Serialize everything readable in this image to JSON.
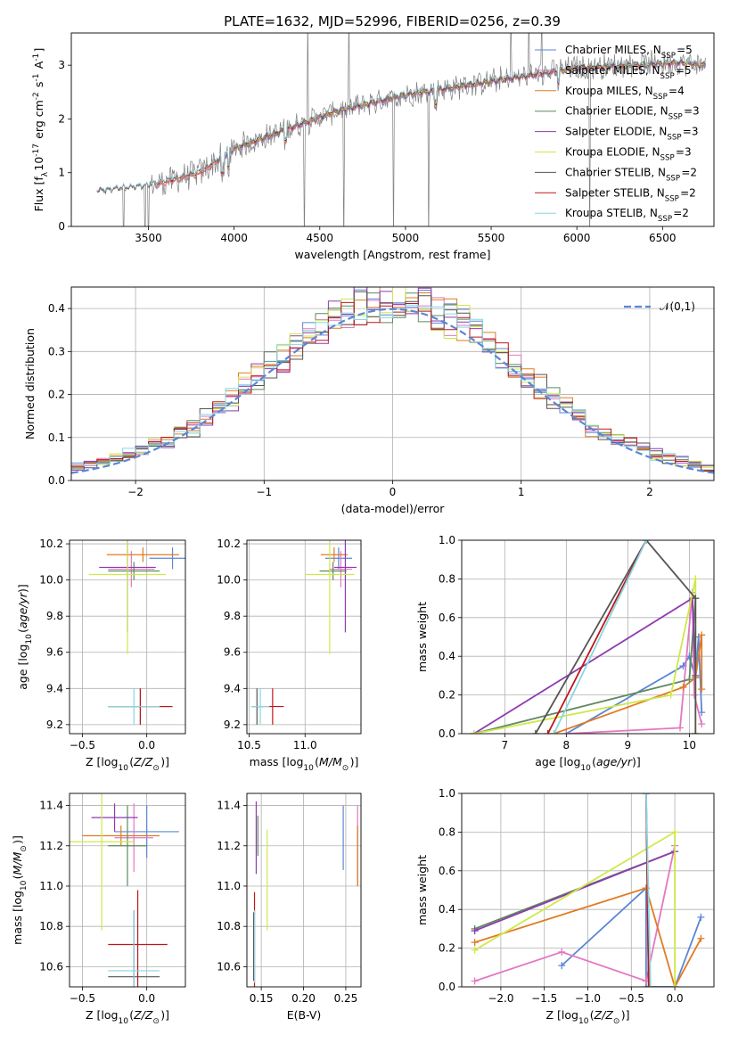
{
  "title": "PLATE=1632, MJD=52996, FIBERID=0256, z=0.39",
  "colors": {
    "Chabrier MILES": "#5b86d6",
    "Salpeter MILES": "#e377c2",
    "Kroupa MILES": "#e07b22",
    "Chabrier ELODIE": "#5e8a5e",
    "Salpeter ELODIE": "#8e3bb0",
    "Kroupa ELODIE": "#cfe84a",
    "Chabrier STELIB": "#555555",
    "Salpeter STELIB": "#c0161b",
    "Kroupa STELIB": "#87d6e3",
    "data": "#808080",
    "normal": "#5b86d6"
  },
  "chart_data": [
    {
      "type": "line",
      "id": "spectrum",
      "xlabel": "wavelength [Angstrom, rest frame]",
      "ylabel": "Flux [f$_\\lambda$10$^{-17}$ erg cm$^{-2}$ s$^{-1}$ A$^{-1}$]",
      "xlim": [
        3050,
        6800
      ],
      "ylim": [
        0,
        3.6
      ],
      "xticks": [
        3500,
        4000,
        4500,
        5000,
        5500,
        6000,
        6500
      ],
      "yticks": [
        0,
        1,
        2,
        3
      ],
      "grid": false,
      "legend_position": "top-right",
      "legend": [
        {
          "name": "Chabrier MILES",
          "nssp": "5"
        },
        {
          "name": "Salpeter MILES",
          "nssp": "5"
        },
        {
          "name": "Kroupa MILES",
          "nssp": "4"
        },
        {
          "name": "Chabrier ELODIE",
          "nssp": "3"
        },
        {
          "name": "Salpeter ELODIE",
          "nssp": "3"
        },
        {
          "name": "Kroupa ELODIE",
          "nssp": "3"
        },
        {
          "name": "Chabrier STELIB",
          "nssp": "2"
        },
        {
          "name": "Salpeter STELIB",
          "nssp": "2"
        },
        {
          "name": "Kroupa STELIB",
          "nssp": "2"
        }
      ],
      "continuum": {
        "x": [
          3200,
          3500,
          3800,
          4000,
          4300,
          4600,
          5000,
          5300,
          5600,
          6000,
          6300,
          6600,
          6750
        ],
        "y": [
          0.65,
          0.75,
          1.0,
          1.45,
          1.8,
          2.15,
          2.45,
          2.6,
          2.75,
          2.95,
          3.0,
          3.05,
          3.0
        ]
      }
    },
    {
      "type": "line",
      "id": "residuals",
      "xlabel": "(data-model)/error",
      "ylabel": "Normed distribution",
      "xlim": [
        -2.5,
        2.5
      ],
      "ylim": [
        0,
        0.45
      ],
      "xticks": [
        -2,
        -1,
        0,
        1,
        2
      ],
      "yticks": [
        0.0,
        0.1,
        0.2,
        0.3,
        0.4
      ],
      "grid": true,
      "legend_position": "top-right",
      "legend": "$\\mathcal{N}(0,1)$"
    },
    {
      "type": "scatter",
      "id": "age-vs-Z",
      "xlabel": "Z [log$_{10}$($Z/Z_\\odot$)]",
      "ylabel": "age  [log$_{10}$($age/yr$)]",
      "xlim": [
        -0.6,
        0.3
      ],
      "ylim": [
        9.15,
        10.22
      ],
      "xticks": [
        -0.5,
        0.0
      ],
      "yticks": [
        9.2,
        9.4,
        9.6,
        9.8,
        10.0,
        10.2
      ],
      "grid": true,
      "points": [
        {
          "model": "Chabrier MILES",
          "x": 0.2,
          "y": 10.12,
          "xerr": 0.18,
          "yerr": 0.06
        },
        {
          "model": "Salpeter MILES",
          "x": -0.12,
          "y": 10.06,
          "xerr": 0.18,
          "yerr": 0.1
        },
        {
          "model": "Kroupa MILES",
          "x": -0.03,
          "y": 10.14,
          "xerr": 0.28,
          "yerr": 0.04
        },
        {
          "model": "Chabrier ELODIE",
          "x": -0.1,
          "y": 10.05,
          "xerr": 0.2,
          "yerr": 0.05
        },
        {
          "model": "Salpeter ELODIE",
          "x": -0.15,
          "y": 10.07,
          "xerr": 0.22,
          "yerr": 0.36
        },
        {
          "model": "Kroupa ELODIE",
          "x": -0.15,
          "y": 10.03,
          "xerr": 0.3,
          "yerr": 0.44
        },
        {
          "model": "Chabrier STELIB",
          "x": -0.05,
          "y": 9.3,
          "xerr": 0.25,
          "yerr": 0.1
        },
        {
          "model": "Salpeter STELIB",
          "x": -0.05,
          "y": 9.3,
          "xerr": 0.25,
          "yerr": 0.1
        },
        {
          "model": "Kroupa STELIB",
          "x": -0.1,
          "y": 9.3,
          "xerr": 0.2,
          "yerr": 0.1
        }
      ]
    },
    {
      "type": "scatter",
      "id": "age-vs-mass",
      "xlabel": "mass [log$_{10}$($M/M_\\odot$)]",
      "ylabel": "",
      "xlim": [
        10.48,
        11.5
      ],
      "ylim": [
        9.15,
        10.22
      ],
      "xticks": [
        10.5,
        11.0
      ],
      "yticks": [
        9.2,
        9.4,
        9.6,
        9.8,
        10.0,
        10.2
      ],
      "grid": true,
      "points": [
        {
          "model": "Chabrier MILES",
          "x": 11.3,
          "y": 10.12,
          "xerr": 0.12,
          "yerr": 0.06
        },
        {
          "model": "Salpeter MILES",
          "x": 11.32,
          "y": 10.06,
          "xerr": 0.1,
          "yerr": 0.1
        },
        {
          "model": "Kroupa MILES",
          "x": 11.26,
          "y": 10.14,
          "xerr": 0.12,
          "yerr": 0.04
        },
        {
          "model": "Chabrier ELODIE",
          "x": 11.25,
          "y": 10.05,
          "xerr": 0.12,
          "yerr": 0.05
        },
        {
          "model": "Salpeter ELODIE",
          "x": 11.36,
          "y": 10.07,
          "xerr": 0.1,
          "yerr": 0.36
        },
        {
          "model": "Kroupa ELODIE",
          "x": 11.22,
          "y": 10.03,
          "xerr": 0.22,
          "yerr": 0.44
        },
        {
          "model": "Chabrier STELIB",
          "x": 10.57,
          "y": 9.3,
          "xerr": 0.05,
          "yerr": 0.1
        },
        {
          "model": "Salpeter STELIB",
          "x": 10.71,
          "y": 9.3,
          "xerr": 0.1,
          "yerr": 0.1
        },
        {
          "model": "Kroupa STELIB",
          "x": 10.6,
          "y": 9.3,
          "xerr": 0.08,
          "yerr": 0.1
        }
      ]
    },
    {
      "type": "line",
      "id": "mass-weight-vs-age",
      "xlabel": "age  [log$_{10}$($age/yr$)]",
      "ylabel": "mass weight",
      "xlim": [
        6.3,
        10.4
      ],
      "ylim": [
        0,
        1
      ],
      "xticks": [
        7,
        8,
        9,
        10
      ],
      "yticks": [
        0.0,
        0.2,
        0.4,
        0.6,
        0.8,
        1.0
      ],
      "grid": true,
      "series": [
        {
          "model": "Chabrier MILES",
          "x": [
            8.0,
            9.9,
            10.0,
            10.1,
            10.15,
            10.2
          ],
          "y": [
            0.0,
            0.35,
            0.4,
            0.29,
            0.5,
            0.11
          ]
        },
        {
          "model": "Salpeter MILES",
          "x": [
            8.0,
            9.85,
            10.05,
            10.08,
            10.2
          ],
          "y": [
            0.0,
            0.03,
            0.73,
            0.2,
            0.05
          ]
        },
        {
          "model": "Kroupa MILES",
          "x": [
            7.8,
            9.9,
            10.1,
            10.2,
            10.2
          ],
          "y": [
            0.0,
            0.24,
            0.29,
            0.51,
            0.23
          ]
        },
        {
          "model": "Chabrier ELODIE",
          "x": [
            6.5,
            10.0,
            10.1
          ],
          "y": [
            0.0,
            0.28,
            0.7
          ]
        },
        {
          "model": "Salpeter ELODIE",
          "x": [
            6.5,
            10.05,
            10.1
          ],
          "y": [
            0.0,
            0.7,
            0.3
          ]
        },
        {
          "model": "Kroupa ELODIE",
          "x": [
            6.5,
            9.7,
            10.1,
            10.1
          ],
          "y": [
            0.0,
            0.2,
            0.8,
            0.0
          ]
        },
        {
          "model": "Chabrier STELIB",
          "x": [
            7.5,
            9.3,
            10.1,
            10.1
          ],
          "y": [
            0.0,
            1.0,
            0.7,
            0.0
          ]
        },
        {
          "model": "Salpeter STELIB",
          "x": [
            7.7,
            9.3
          ],
          "y": [
            0.0,
            1.0
          ]
        },
        {
          "model": "Kroupa STELIB",
          "x": [
            7.8,
            9.3
          ],
          "y": [
            0.0,
            1.0
          ]
        }
      ]
    },
    {
      "type": "scatter",
      "id": "mass-vs-Z",
      "xlabel": "Z [log$_{10}$($Z/Z_\\odot$)]",
      "ylabel": "mass [log$_{10}$($M/M_\\odot$)]",
      "xlim": [
        -0.6,
        0.3
      ],
      "ylim": [
        10.5,
        11.46
      ],
      "xticks": [
        -0.5,
        0.0
      ],
      "yticks": [
        10.6,
        10.8,
        11.0,
        11.2,
        11.4
      ],
      "grid": true,
      "points": [
        {
          "model": "Chabrier MILES",
          "x": 0.0,
          "y": 11.27,
          "xerr": 0.25,
          "yerr": 0.13
        },
        {
          "model": "Salpeter MILES",
          "x": -0.1,
          "y": 11.24,
          "xerr": 0.15,
          "yerr": 0.17
        },
        {
          "model": "Kroupa MILES",
          "x": -0.2,
          "y": 11.25,
          "xerr": 0.3,
          "yerr": 0.05
        },
        {
          "model": "Chabrier ELODIE",
          "x": -0.15,
          "y": 11.2,
          "xerr": 0.15,
          "yerr": 0.2
        },
        {
          "model": "Salpeter ELODIE",
          "x": -0.25,
          "y": 11.34,
          "xerr": 0.18,
          "yerr": 0.07
        },
        {
          "model": "Kroupa ELODIE",
          "x": -0.35,
          "y": 11.22,
          "xerr": 0.25,
          "yerr": 0.44
        },
        {
          "model": "Chabrier STELIB",
          "x": -0.1,
          "y": 10.55,
          "xerr": 0.2,
          "yerr": 0.33
        },
        {
          "model": "Salpeter STELIB",
          "x": -0.07,
          "y": 10.71,
          "xerr": 0.23,
          "yerr": 0.27
        },
        {
          "model": "Kroupa STELIB",
          "x": -0.1,
          "y": 10.58,
          "xerr": 0.2,
          "yerr": 0.3
        }
      ]
    },
    {
      "type": "scatter",
      "id": "mass-vs-ebv",
      "xlabel": "E(B-V)",
      "ylabel": "",
      "xlim": [
        0.133,
        0.268
      ],
      "ylim": [
        10.5,
        11.46
      ],
      "xticks": [
        0.15,
        0.2,
        0.25
      ],
      "yticks": [
        10.6,
        10.8,
        11.0,
        11.2,
        11.4
      ],
      "grid": true,
      "points": [
        {
          "model": "Chabrier MILES",
          "x": 0.247,
          "y": 11.24,
          "yerr": 0.16
        },
        {
          "model": "Salpeter MILES",
          "x": 0.264,
          "y": 11.2,
          "yerr": 0.2
        },
        {
          "model": "Kroupa MILES",
          "x": 0.264,
          "y": 11.15,
          "yerr": 0.15
        },
        {
          "model": "Chabrier ELODIE",
          "x": 0.146,
          "y": 11.25,
          "yerr": 0.1
        },
        {
          "model": "Salpeter ELODIE",
          "x": 0.144,
          "y": 11.24,
          "yerr": 0.18
        },
        {
          "model": "Kroupa ELODIE",
          "x": 0.157,
          "y": 11.03,
          "yerr": 0.25
        },
        {
          "model": "Chabrier STELIB",
          "x": 0.141,
          "y": 10.7,
          "yerr": 0.17
        },
        {
          "model": "Salpeter STELIB",
          "x": 0.142,
          "y": 10.72,
          "yerr": 0.25
        },
        {
          "model": "Kroupa STELIB",
          "x": 0.142,
          "y": 10.7,
          "yerr": 0.18
        }
      ]
    },
    {
      "type": "line",
      "id": "mass-weight-vs-Z",
      "xlabel": "Z [log$_{10}$($Z/Z_\\odot$)]",
      "ylabel": "mass weight",
      "xlim": [
        -2.45,
        0.45
      ],
      "ylim": [
        0,
        1
      ],
      "xticks": [
        -2.0,
        -1.5,
        -1.0,
        -0.5,
        0.0
      ],
      "yticks": [
        0.0,
        0.2,
        0.4,
        0.6,
        0.8,
        1.0
      ],
      "grid": true,
      "series": [
        {
          "model": "Chabrier MILES",
          "x": [
            -1.3,
            -0.33,
            -0.33,
            0.0,
            0.3
          ],
          "y": [
            0.11,
            0.51,
            0.0,
            0.0,
            0.36
          ]
        },
        {
          "model": "Salpeter MILES",
          "x": [
            -2.3,
            -1.3,
            -0.33,
            0.0
          ],
          "y": [
            0.03,
            0.18,
            0.03,
            0.73
          ]
        },
        {
          "model": "Kroupa MILES",
          "x": [
            -2.3,
            -0.33,
            0.0,
            0.3
          ],
          "y": [
            0.23,
            0.51,
            0.0,
            0.25
          ]
        },
        {
          "model": "Chabrier ELODIE",
          "x": [
            -2.3,
            0.0
          ],
          "y": [
            0.3,
            0.7
          ]
        },
        {
          "model": "Salpeter ELODIE",
          "x": [
            -2.3,
            0.0
          ],
          "y": [
            0.29,
            0.7
          ]
        },
        {
          "model": "Kroupa ELODIE",
          "x": [
            -2.3,
            0.0,
            0.0
          ],
          "y": [
            0.19,
            0.8,
            0.0
          ]
        },
        {
          "model": "Chabrier STELIB",
          "x": [
            -0.33,
            -0.3
          ],
          "y": [
            1.0,
            0.0
          ]
        },
        {
          "model": "Salpeter STELIB",
          "x": [
            -0.33,
            -0.3
          ],
          "y": [
            1.0,
            0.0
          ]
        },
        {
          "model": "Kroupa STELIB",
          "x": [
            -0.33,
            -0.28
          ],
          "y": [
            1.0,
            0.0
          ]
        }
      ]
    }
  ]
}
